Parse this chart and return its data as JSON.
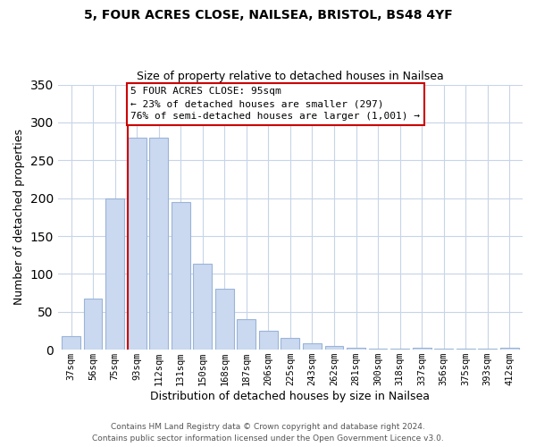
{
  "title": "5, FOUR ACRES CLOSE, NAILSEA, BRISTOL, BS48 4YF",
  "subtitle": "Size of property relative to detached houses in Nailsea",
  "xlabel": "Distribution of detached houses by size in Nailsea",
  "ylabel": "Number of detached properties",
  "bar_labels": [
    "37sqm",
    "56sqm",
    "75sqm",
    "93sqm",
    "112sqm",
    "131sqm",
    "150sqm",
    "168sqm",
    "187sqm",
    "206sqm",
    "225sqm",
    "243sqm",
    "262sqm",
    "281sqm",
    "300sqm",
    "318sqm",
    "337sqm",
    "356sqm",
    "375sqm",
    "393sqm",
    "412sqm"
  ],
  "bar_values": [
    18,
    68,
    200,
    280,
    280,
    195,
    114,
    80,
    40,
    25,
    15,
    8,
    5,
    2,
    1,
    1,
    2,
    1,
    1,
    1,
    2
  ],
  "bar_color": "#cad9f0",
  "bar_edge_color": "#9ab4d8",
  "vline_x_index": 3,
  "vline_color": "#cc0000",
  "ylim": [
    0,
    350
  ],
  "yticks": [
    0,
    50,
    100,
    150,
    200,
    250,
    300,
    350
  ],
  "annotation_line1": "5 FOUR ACRES CLOSE: 95sqm",
  "annotation_line2": "← 23% of detached houses are smaller (297)",
  "annotation_line3": "76% of semi-detached houses are larger (1,001) →",
  "annotation_box_color": "#ffffff",
  "annotation_box_edge": "#cc0000",
  "footer1": "Contains HM Land Registry data © Crown copyright and database right 2024.",
  "footer2": "Contains public sector information licensed under the Open Government Licence v3.0.",
  "background_color": "#ffffff",
  "grid_color": "#c8d4e8"
}
